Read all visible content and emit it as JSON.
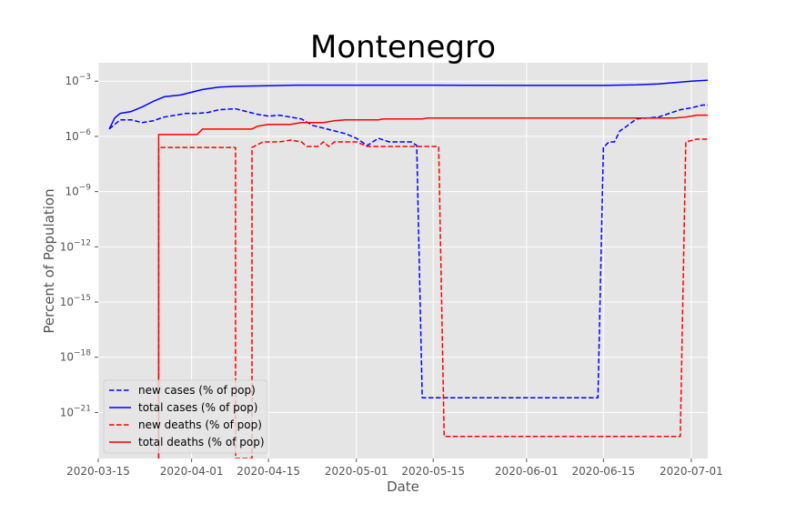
{
  "chart_data": {
    "type": "line",
    "title": "Montenegro",
    "xlabel": "Date",
    "ylabel": "Percent of Population",
    "yscale": "log",
    "ylim_exponent": [
      -23.5,
      -2.0
    ],
    "xlim": [
      "2020-03-15",
      "2020-07-04"
    ],
    "x_ticks": [
      "2020-03-15",
      "2020-04-01",
      "2020-04-15",
      "2020-05-01",
      "2020-05-15",
      "2020-06-01",
      "2020-06-15",
      "2020-07-01"
    ],
    "y_ticks": [
      {
        "exp": -3,
        "base": "10",
        "sup": "−3"
      },
      {
        "exp": -6,
        "base": "10",
        "sup": "−6"
      },
      {
        "exp": -9,
        "base": "10",
        "sup": "−9"
      },
      {
        "exp": -12,
        "base": "10",
        "sup": "−12"
      },
      {
        "exp": -15,
        "base": "10",
        "sup": "−15"
      },
      {
        "exp": -18,
        "base": "10",
        "sup": "−18"
      },
      {
        "exp": -21,
        "base": "10",
        "sup": "−21"
      }
    ],
    "grid": true,
    "legend_position": "lower-left",
    "series": [
      {
        "name": "new cases (% of pop)",
        "color": "#0000ff",
        "style": "dashed",
        "points": [
          [
            "2020-03-17",
            -5.6
          ],
          [
            "2020-03-19",
            -5.1
          ],
          [
            "2020-03-21",
            -5.1
          ],
          [
            "2020-03-23",
            -5.25
          ],
          [
            "2020-03-25",
            -5.15
          ],
          [
            "2020-03-27",
            -4.95
          ],
          [
            "2020-03-29",
            -4.85
          ],
          [
            "2020-03-31",
            -4.75
          ],
          [
            "2020-04-02",
            -4.75
          ],
          [
            "2020-04-04",
            -4.7
          ],
          [
            "2020-04-06",
            -4.55
          ],
          [
            "2020-04-09",
            -4.5
          ],
          [
            "2020-04-11",
            -4.65
          ],
          [
            "2020-04-13",
            -4.8
          ],
          [
            "2020-04-15",
            -4.9
          ],
          [
            "2020-04-17",
            -4.85
          ],
          [
            "2020-04-19",
            -4.95
          ],
          [
            "2020-04-21",
            -5.05
          ],
          [
            "2020-04-23",
            -5.4
          ],
          [
            "2020-04-25",
            -5.55
          ],
          [
            "2020-04-27",
            -5.7
          ],
          [
            "2020-04-29",
            -5.85
          ],
          [
            "2020-05-01",
            -6.1
          ],
          [
            "2020-05-03",
            -6.5
          ],
          [
            "2020-05-05",
            -6.1
          ],
          [
            "2020-05-07",
            -6.3
          ],
          [
            "2020-05-09",
            -6.3
          ],
          [
            "2020-05-11",
            -6.3
          ],
          [
            "2020-05-12",
            -6.5
          ],
          [
            "2020-05-13",
            -20.2
          ],
          [
            "2020-06-14",
            -20.2
          ],
          [
            "2020-06-15",
            -6.6
          ],
          [
            "2020-06-16",
            -6.3
          ],
          [
            "2020-06-17",
            -6.3
          ],
          [
            "2020-06-18",
            -5.7
          ],
          [
            "2020-06-19",
            -5.5
          ],
          [
            "2020-06-21",
            -5.05
          ],
          [
            "2020-06-23",
            -5.0
          ],
          [
            "2020-06-25",
            -4.95
          ],
          [
            "2020-06-27",
            -4.75
          ],
          [
            "2020-06-29",
            -4.55
          ],
          [
            "2020-07-01",
            -4.45
          ],
          [
            "2020-07-03",
            -4.3
          ],
          [
            "2020-07-04",
            -4.3
          ]
        ]
      },
      {
        "name": "total cases (% of pop)",
        "color": "#0000ff",
        "style": "solid",
        "points": [
          [
            "2020-03-17",
            -5.6
          ],
          [
            "2020-03-18",
            -5.0
          ],
          [
            "2020-03-19",
            -4.75
          ],
          [
            "2020-03-21",
            -4.65
          ],
          [
            "2020-03-23",
            -4.4
          ],
          [
            "2020-03-25",
            -4.1
          ],
          [
            "2020-03-27",
            -3.85
          ],
          [
            "2020-03-30",
            -3.75
          ],
          [
            "2020-04-01",
            -3.6
          ],
          [
            "2020-04-03",
            -3.45
          ],
          [
            "2020-04-06",
            -3.32
          ],
          [
            "2020-04-09",
            -3.28
          ],
          [
            "2020-04-15",
            -3.25
          ],
          [
            "2020-04-20",
            -3.22
          ],
          [
            "2020-04-30",
            -3.22
          ],
          [
            "2020-05-15",
            -3.22
          ],
          [
            "2020-06-01",
            -3.23
          ],
          [
            "2020-06-15",
            -3.23
          ],
          [
            "2020-06-21",
            -3.2
          ],
          [
            "2020-06-25",
            -3.15
          ],
          [
            "2020-06-29",
            -3.05
          ],
          [
            "2020-07-02",
            -2.98
          ],
          [
            "2020-07-04",
            -2.95
          ]
        ]
      },
      {
        "name": "new deaths (% of pop)",
        "color": "#ff0000",
        "style": "dashed",
        "points": [
          [
            "2020-03-26",
            -23.5
          ],
          [
            "2020-03-26",
            -6.6
          ],
          [
            "2020-04-09",
            -6.6
          ],
          [
            "2020-04-09",
            -23.5
          ],
          [
            "2020-04-12",
            -23.5
          ],
          [
            "2020-04-12",
            -6.6
          ],
          [
            "2020-04-14",
            -6.3
          ],
          [
            "2020-04-17",
            -6.3
          ],
          [
            "2020-04-19",
            -6.2
          ],
          [
            "2020-04-21",
            -6.3
          ],
          [
            "2020-04-22",
            -6.55
          ],
          [
            "2020-04-24",
            -6.55
          ],
          [
            "2020-04-25",
            -6.3
          ],
          [
            "2020-04-26",
            -6.55
          ],
          [
            "2020-04-27",
            -6.3
          ],
          [
            "2020-05-01",
            -6.3
          ],
          [
            "2020-05-03",
            -6.55
          ],
          [
            "2020-05-16",
            -6.55
          ],
          [
            "2020-05-17",
            -22.3
          ],
          [
            "2020-06-29",
            -22.3
          ],
          [
            "2020-06-30",
            -6.3
          ],
          [
            "2020-07-02",
            -6.15
          ],
          [
            "2020-07-04",
            -6.15
          ]
        ]
      },
      {
        "name": "total deaths (% of pop)",
        "color": "#ff0000",
        "style": "solid",
        "points": [
          [
            "2020-03-26",
            -23.5
          ],
          [
            "2020-03-26",
            -5.9
          ],
          [
            "2020-04-02",
            -5.9
          ],
          [
            "2020-04-03",
            -5.6
          ],
          [
            "2020-04-12",
            -5.6
          ],
          [
            "2020-04-13",
            -5.45
          ],
          [
            "2020-04-15",
            -5.35
          ],
          [
            "2020-04-19",
            -5.35
          ],
          [
            "2020-04-21",
            -5.25
          ],
          [
            "2020-04-25",
            -5.25
          ],
          [
            "2020-04-27",
            -5.15
          ],
          [
            "2020-04-29",
            -5.1
          ],
          [
            "2020-05-05",
            -5.1
          ],
          [
            "2020-05-06",
            -5.05
          ],
          [
            "2020-05-13",
            -5.05
          ],
          [
            "2020-05-14",
            -5.0
          ],
          [
            "2020-06-28",
            -5.0
          ],
          [
            "2020-06-30",
            -4.95
          ],
          [
            "2020-07-02",
            -4.85
          ],
          [
            "2020-07-04",
            -4.85
          ]
        ]
      }
    ]
  }
}
